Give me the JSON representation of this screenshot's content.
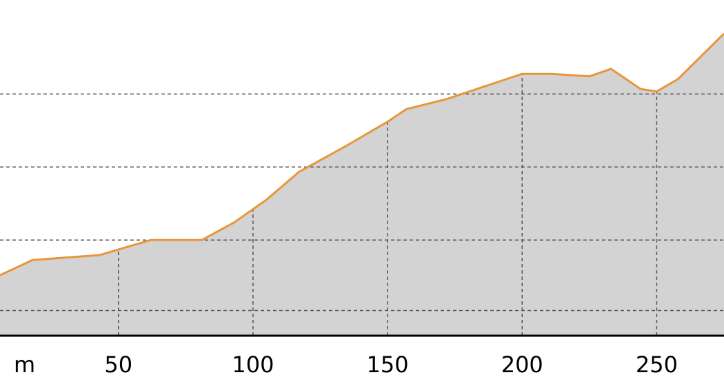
{
  "chart_data": {
    "type": "area",
    "title": "",
    "xlabel": "m",
    "ylabel": "",
    "x_ticks": [
      50,
      100,
      150,
      200,
      250
    ],
    "xlim": [
      6,
      275
    ],
    "ylim": [
      0,
      115
    ],
    "grid": true,
    "colors": {
      "line": "#e8963a",
      "fill": "#d3d3d3",
      "grid": "#555555",
      "axis": "#000000"
    },
    "series": [
      {
        "x": [
          6,
          18,
          30,
          43,
          62,
          81,
          93,
          105,
          117,
          134,
          150,
          157,
          172,
          186,
          200,
          211,
          225,
          233,
          244,
          250,
          258,
          275
        ],
        "y": [
          24,
          30,
          31,
          32,
          38,
          38,
          45,
          54,
          65,
          75,
          85,
          90,
          94,
          99,
          104,
          104,
          103,
          106,
          98,
          97,
          102,
          120
        ]
      }
    ]
  }
}
